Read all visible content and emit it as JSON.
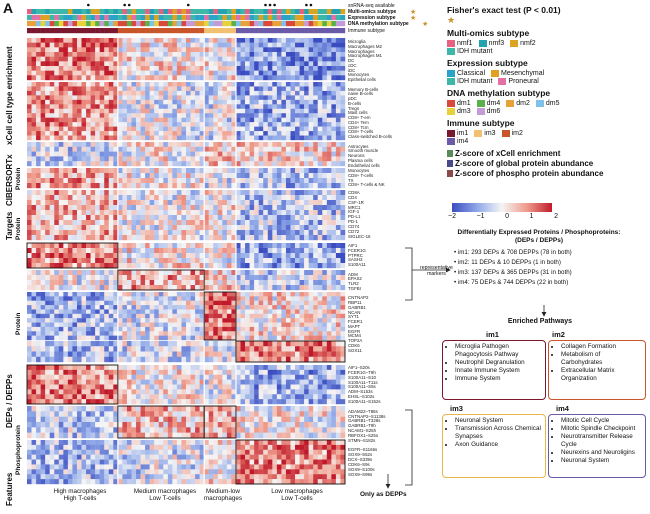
{
  "panel_letter": "A",
  "top_annotations": [
    "snRNA-seq available",
    "Multi-omics subtype",
    "Expression subtype",
    "DNA methylation subtype",
    "Immune subtype"
  ],
  "annotation_stars": [
    "★",
    "★",
    "★"
  ],
  "left_sections": [
    "xCell cell type enrichment",
    "CIBERSORTx",
    "Targets",
    "Protein",
    "DEPs / DEPPs",
    "Features"
  ],
  "sub_sections": [
    "Protein",
    "Protein",
    "Protein",
    "Phosphoprotein"
  ],
  "xcell_rows": [
    "Microglia",
    "Macrophages M2",
    "Macrophages",
    "Macrophages M1",
    "DC",
    "cDC",
    "iDC",
    "Monocytes",
    "Epithelial cells",
    "",
    "Memory B-cells",
    "naive B-cells",
    "pDC",
    "B-cells",
    "Tregs",
    "Mast cells",
    "CD8+ T-em",
    "CD4+ Tem",
    "CD8+ Tcm",
    "CD8+ T-cells",
    "Class-switched B-cells",
    "",
    "Astrocytes",
    "Smooth muscle",
    "Neurons",
    "Plasma cells",
    "Endothelial cells"
  ],
  "cibersort_rows": [
    "Monocytes",
    "CD8+ T-cells",
    "TX",
    "CD8+ T-cells & NK"
  ],
  "target_rows": [
    "CD8A",
    "CD4",
    "CSF-1R",
    "MRC1",
    "IGF-1",
    "PD-L1",
    "PD-1",
    "CD74",
    "CD72",
    "SIGLEC-16"
  ],
  "dep_rows_top": [
    "AIF1",
    "FCER1G",
    "PTPRC",
    "SASH3",
    "S100A11",
    "",
    "ADM",
    "EPAS2",
    "TLR2",
    "TGFBI",
    "",
    "CNTNAP2",
    "RBP11",
    "GABRB1",
    "NCAN",
    "SYT1",
    "FCER1",
    "MAPT",
    "EGFR",
    "MCM4",
    "TOP2A",
    "CDK6",
    "SOX11"
  ],
  "dep_rows_bottom": [
    "AIF1–S20s",
    "FCER1G–T9h",
    "S100A11–S10",
    "S100A11–T11s",
    "S100A11–S5s",
    "ADM–S153s",
    "EHSL–S102s",
    "S100A11–S152s",
    "",
    "ADAM22–T88s",
    "CNTNAP2–S1138s",
    "GABRB1–T328s",
    "GABRB1–T9h",
    "NCAM1–S25h",
    "RBFOX1–S25s",
    "STMN–S182s",
    "",
    "EGFR–S1166s",
    "SOX9–S52s",
    "DCX–S339s",
    "CDK6–S9s",
    "SOX9–S100s",
    "SOX9–S99s"
  ],
  "column_groups": [
    "High macrophages\nHigh T-cells",
    "Medium macrophages\nLow T-cells",
    "Medium-low\nmacrophages",
    "Low macrophages\nLow T-cells"
  ],
  "only_as_depps": "Only as DEPPs",
  "representative_markers": "representative\nmarkers",
  "legend": {
    "fisher_title": "Fisher's exact test (P < 0.01)",
    "fisher_star": "★",
    "multiomics_title": "Multi-omics subtype",
    "multiomics": [
      {
        "label": "nmf1",
        "color": "#e8607f"
      },
      {
        "label": "nmf3",
        "color": "#23a3b0"
      },
      {
        "label": "nmf2",
        "color": "#d9a521"
      },
      {
        "label": "IDH mutant",
        "color": "#3db7a8"
      }
    ],
    "expression_title": "Expression subtype",
    "expression": [
      {
        "label": "Classical",
        "color": "#2aa3c9"
      },
      {
        "label": "Mesenchymal",
        "color": "#e0a020"
      },
      {
        "label": "IDH mutant",
        "color": "#3db7a8"
      },
      {
        "label": "Proneural",
        "color": "#e46fa4"
      }
    ],
    "methylation_title": "DNA methylation subtype",
    "methylation": [
      {
        "label": "dm1",
        "color": "#d7493d"
      },
      {
        "label": "dm4",
        "color": "#5ab04a"
      },
      {
        "label": "dm2",
        "color": "#e6a13a"
      },
      {
        "label": "dm5",
        "color": "#7fc1e8"
      },
      {
        "label": "dm3",
        "color": "#e6d23a"
      },
      {
        "label": "dm6",
        "color": "#c59bd7"
      }
    ],
    "immune_title": "Immune subtype",
    "immune": [
      {
        "label": "im1",
        "color": "#7a1830"
      },
      {
        "label": "im3",
        "color": "#f1c070"
      },
      {
        "label": "im2",
        "color": "#c9562a"
      },
      {
        "label": "im4",
        "color": "#6a5aa8"
      }
    ],
    "z_lines": [
      "Z-score of xCell enrichment",
      "Z-score of global protein abundance",
      "Z-score of phospho protein abundance"
    ],
    "z_colors": [
      "#5a8a5a",
      "#4a4a8a",
      "#8a4a4a"
    ],
    "colorbar_ticks": [
      "−2",
      "−1",
      "0",
      "1",
      "2"
    ]
  },
  "dep_title": "Differentially Expressed Proteins / Phosphoproteins:\n(DEPs / DEPPs)",
  "dep_lines": [
    "• im1: 293 DEPs & 708 DEPPs (78 in both)",
    "• im2: 11 DEPs & 10 DEPPs (1 in both)",
    "• im3: 137 DEPs & 365 DEPPs (31 in both)",
    "• im4: 75 DEPs & 744 DEPPs (22 in both)"
  ],
  "pathways_title": "Enriched Pathways",
  "pathways": [
    {
      "title": "im1",
      "color": "#7a1830",
      "items": [
        "Microglia Pathogen Phagocytosis Pathway",
        "Neutrophil Degranulation",
        "Innate Immune System",
        "Immune System"
      ]
    },
    {
      "title": "im2",
      "color": "#c9562a",
      "items": [
        "Collagen Formation",
        "Metabolism of Carbohydrates",
        "Extracellular Matrix Organization"
      ]
    },
    {
      "title": "im3",
      "color": "#e8b84a",
      "items": [
        "Neuronal System",
        "Transmission Across Chemical Synapses",
        "Axon Guidance"
      ]
    },
    {
      "title": "im4",
      "color": "#6a5aa8",
      "items": [
        "Mitotic Cell Cycle",
        "Mitotic Spindle Checkpoint",
        "Neurotransmitter Release Cycle",
        "Neurexins and Neuroligins",
        "Neuronal System"
      ]
    }
  ]
}
